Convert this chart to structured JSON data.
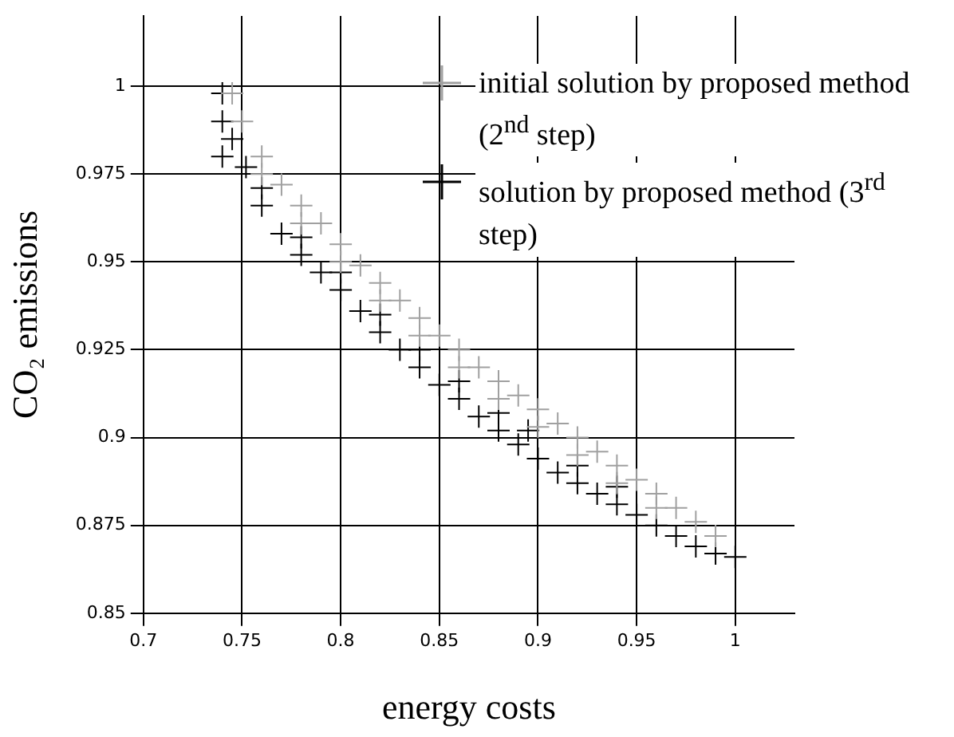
{
  "chart_data": {
    "type": "scatter",
    "xlabel": "energy costs",
    "ylabel": "CO₂ emissions",
    "xlim": [
      0.7,
      1.03
    ],
    "ylim": [
      0.85,
      1.02
    ],
    "xticks": [
      0.7,
      0.75,
      0.8,
      0.85,
      0.9,
      0.95,
      1
    ],
    "yticks": [
      0.85,
      0.875,
      0.9,
      0.925,
      0.95,
      0.975,
      1
    ],
    "grid": true,
    "legend": "top right",
    "marker": "cross",
    "series": [
      {
        "name": "initial solution by proposed method (2$^{nd}$ step)",
        "color": "#a0a0a0",
        "x": [
          0.745,
          0.75,
          0.76,
          0.77,
          0.78,
          0.79,
          0.8,
          0.81,
          0.82,
          0.83,
          0.84,
          0.85,
          0.86,
          0.87,
          0.88,
          0.89,
          0.9,
          0.91,
          0.92,
          0.93,
          0.94,
          0.95,
          0.96,
          0.97,
          0.98,
          0.99,
          0.76,
          0.78,
          0.8,
          0.82,
          0.84,
          0.86,
          0.88,
          0.9,
          0.92,
          0.94,
          0.96
        ],
        "values": [
          0.998,
          0.99,
          0.98,
          0.972,
          0.966,
          0.961,
          0.955,
          0.949,
          0.944,
          0.939,
          0.934,
          0.929,
          0.925,
          0.92,
          0.916,
          0.912,
          0.908,
          0.904,
          0.9,
          0.896,
          0.892,
          0.888,
          0.884,
          0.88,
          0.876,
          0.872,
          0.975,
          0.961,
          0.95,
          0.939,
          0.929,
          0.92,
          0.911,
          0.903,
          0.895,
          0.887,
          0.88
        ]
      },
      {
        "name": "solution by proposed method (3$^{rd}$ step)",
        "color": "#000000",
        "x": [
          0.74,
          0.74,
          0.74,
          0.745,
          0.752,
          0.76,
          0.77,
          0.78,
          0.79,
          0.8,
          0.81,
          0.82,
          0.83,
          0.84,
          0.85,
          0.86,
          0.87,
          0.88,
          0.89,
          0.9,
          0.91,
          0.92,
          0.93,
          0.94,
          0.95,
          0.96,
          0.97,
          0.98,
          0.99,
          1.0,
          0.76,
          0.78,
          0.8,
          0.82,
          0.84,
          0.86,
          0.88,
          0.895,
          0.92,
          0.94
        ],
        "values": [
          0.998,
          0.99,
          0.98,
          0.985,
          0.977,
          0.966,
          0.958,
          0.952,
          0.947,
          0.942,
          0.936,
          0.93,
          0.925,
          0.92,
          0.915,
          0.911,
          0.906,
          0.902,
          0.898,
          0.894,
          0.89,
          0.887,
          0.884,
          0.881,
          0.878,
          0.875,
          0.872,
          0.869,
          0.867,
          0.866,
          0.971,
          0.957,
          0.947,
          0.935,
          0.925,
          0.916,
          0.907,
          0.902,
          0.892,
          0.886
        ]
      }
    ]
  }
}
